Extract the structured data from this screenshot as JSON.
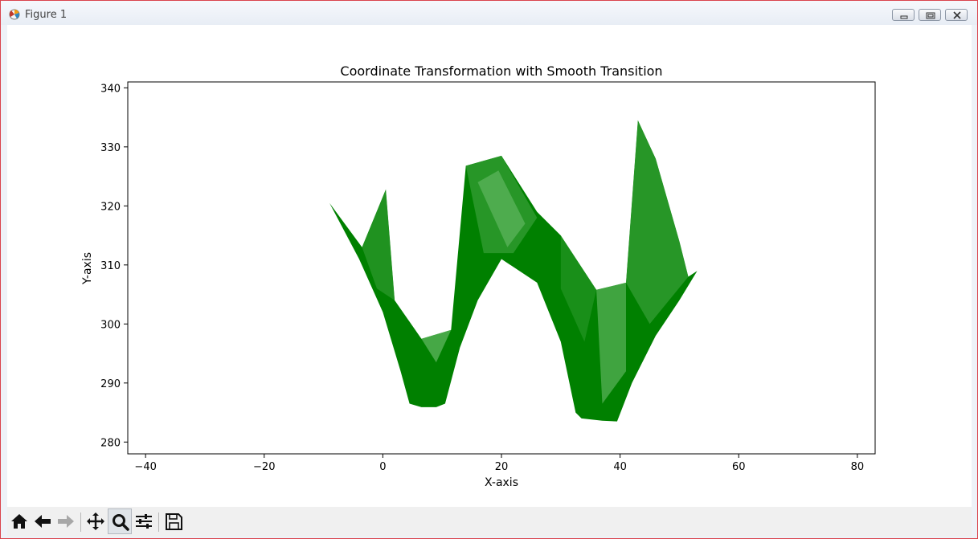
{
  "window": {
    "title": "Figure 1"
  },
  "toolbar": {
    "buttons": [
      {
        "name": "home-icon"
      },
      {
        "name": "back-icon"
      },
      {
        "name": "forward-icon"
      },
      {
        "name": "pan-icon"
      },
      {
        "name": "zoom-icon",
        "active": true
      },
      {
        "name": "subplots-icon"
      },
      {
        "name": "save-icon"
      }
    ]
  },
  "chart_data": {
    "type": "area",
    "title": "Coordinate Transformation with Smooth Transition",
    "xlabel": "X-axis",
    "ylabel": "Y-axis",
    "xlim": [
      -43,
      83
    ],
    "ylim": [
      278,
      341
    ],
    "xticks": [
      -40,
      -20,
      0,
      20,
      40,
      60,
      80
    ],
    "xtick_labels": [
      "−40",
      "−20",
      "0",
      "20",
      "40",
      "60",
      "80"
    ],
    "yticks": [
      280,
      290,
      300,
      310,
      320,
      330,
      340
    ],
    "ytick_labels": [
      "280",
      "290",
      "300",
      "310",
      "320",
      "330",
      "340"
    ],
    "grid": false,
    "colors": {
      "fill": "#008000",
      "fill_light": "#2e9a2e",
      "highlight": "#7fc87f"
    },
    "upper_boundary": [
      {
        "x": -9.0,
        "y": 320.5
      },
      {
        "x": -3.5,
        "y": 313.0
      },
      {
        "x": 0.5,
        "y": 322.8
      },
      {
        "x": 2.0,
        "y": 304.0
      },
      {
        "x": 6.5,
        "y": 297.5
      },
      {
        "x": 11.5,
        "y": 299.0
      },
      {
        "x": 14.0,
        "y": 326.8
      },
      {
        "x": 20.0,
        "y": 328.5
      },
      {
        "x": 26.0,
        "y": 319.0
      },
      {
        "x": 30.0,
        "y": 315.0
      },
      {
        "x": 36.0,
        "y": 305.8
      },
      {
        "x": 41.0,
        "y": 307.0
      },
      {
        "x": 43.0,
        "y": 334.5
      },
      {
        "x": 46.0,
        "y": 328.0
      },
      {
        "x": 50.0,
        "y": 314.0
      },
      {
        "x": 51.5,
        "y": 308.0
      },
      {
        "x": 53.0,
        "y": 309.0
      }
    ],
    "lower_boundary": [
      {
        "x": -9.0,
        "y": 320.5
      },
      {
        "x": -4.0,
        "y": 311.0
      },
      {
        "x": 0.0,
        "y": 302.0
      },
      {
        "x": 3.0,
        "y": 292.0
      },
      {
        "x": 4.5,
        "y": 286.5
      },
      {
        "x": 6.5,
        "y": 285.9
      },
      {
        "x": 9.0,
        "y": 285.9
      },
      {
        "x": 10.5,
        "y": 286.5
      },
      {
        "x": 13.0,
        "y": 296.0
      },
      {
        "x": 16.0,
        "y": 304.0
      },
      {
        "x": 20.0,
        "y": 311.0
      },
      {
        "x": 26.0,
        "y": 307.0
      },
      {
        "x": 30.0,
        "y": 297.0
      },
      {
        "x": 32.5,
        "y": 285.0
      },
      {
        "x": 33.5,
        "y": 284.0
      },
      {
        "x": 37.0,
        "y": 283.6
      },
      {
        "x": 39.5,
        "y": 283.5
      },
      {
        "x": 42.0,
        "y": 290.0
      },
      {
        "x": 46.0,
        "y": 298.0
      },
      {
        "x": 50.0,
        "y": 304.0
      },
      {
        "x": 53.0,
        "y": 309.0
      }
    ]
  }
}
